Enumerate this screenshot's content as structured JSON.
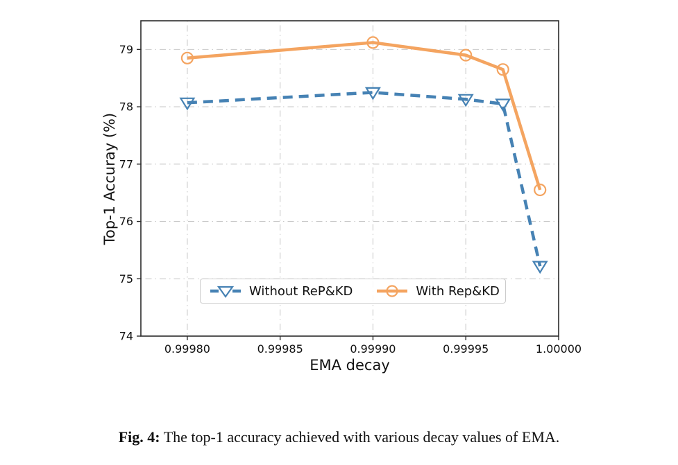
{
  "window": {
    "background": "#ffffff"
  },
  "chart_data": {
    "type": "line",
    "title": "",
    "xlabel": "EMA decay",
    "ylabel": "Top-1 Accuray (%)",
    "xlim": [
      0.999775,
      1.0
    ],
    "ylim": [
      74,
      79.5
    ],
    "grid": {
      "visible": true,
      "style": "dash-dot",
      "color": "#c9c9c9",
      "axes": "both"
    },
    "legend_position": "lower center",
    "x": [
      0.9998,
      0.9999,
      0.99995,
      0.99997,
      0.99999
    ],
    "xticks": [
      {
        "value": 0.9998,
        "label": "0.99980"
      },
      {
        "value": 0.99985,
        "label": "0.99985"
      },
      {
        "value": 0.9999,
        "label": "0.99990"
      },
      {
        "value": 0.99995,
        "label": "0.99995"
      },
      {
        "value": 1.0,
        "label": "1.00000"
      }
    ],
    "yticks": [
      {
        "value": 74,
        "label": "74"
      },
      {
        "value": 75,
        "label": "75"
      },
      {
        "value": 76,
        "label": "76"
      },
      {
        "value": 77,
        "label": "77"
      },
      {
        "value": 78,
        "label": "78"
      },
      {
        "value": 79,
        "label": "79"
      }
    ],
    "series": [
      {
        "name": "Without ReP&KD",
        "color": "#4682b4",
        "line_style": "dashed",
        "marker": "triangle-down",
        "values": [
          78.07,
          78.25,
          78.13,
          78.05,
          75.22
        ]
      },
      {
        "name": "With Rep&KD",
        "color": "#f4a460",
        "line_style": "solid",
        "marker": "circle",
        "values": [
          78.85,
          79.12,
          78.9,
          78.65,
          76.55
        ]
      }
    ]
  },
  "caption": {
    "label": "Fig. 4:",
    "text": "The top-1 accuracy achieved with various decay values of EMA."
  }
}
